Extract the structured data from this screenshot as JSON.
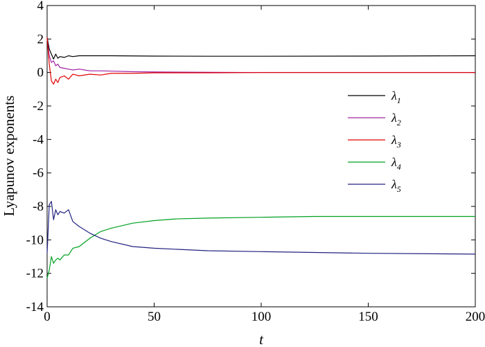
{
  "chart_data": {
    "type": "line",
    "title": "",
    "xlabel": "t",
    "ylabel": "Lyapunov exponents",
    "xlim": [
      0,
      200
    ],
    "ylim": [
      -14,
      4
    ],
    "xticks": [
      0,
      50,
      100,
      150,
      200
    ],
    "yticks": [
      4,
      2,
      0,
      -2,
      -4,
      -6,
      -8,
      -10,
      -12,
      -14
    ],
    "grid": false,
    "legend_position": "right",
    "series": [
      {
        "name": "λ1",
        "base": "λ",
        "sub": "1",
        "color": "#000000",
        "x": [
          0,
          1,
          2,
          3,
          4,
          5,
          6,
          8,
          10,
          12,
          15,
          20,
          30,
          50,
          75,
          100,
          150,
          200
        ],
        "y": [
          2.1,
          1.4,
          1.1,
          0.8,
          1.1,
          0.85,
          0.95,
          0.9,
          1.0,
          0.95,
          1.0,
          1.0,
          1.0,
          0.98,
          0.97,
          0.97,
          0.98,
          1.0
        ]
      },
      {
        "name": "λ2",
        "base": "λ",
        "sub": "2",
        "color": "#a020a0",
        "x": [
          0,
          1,
          2,
          3,
          4,
          5,
          6,
          8,
          10,
          12,
          15,
          20,
          25,
          30,
          40,
          50,
          75,
          100,
          150,
          200
        ],
        "y": [
          2.0,
          1.0,
          0.6,
          0.7,
          0.4,
          0.5,
          0.3,
          0.25,
          0.2,
          0.15,
          0.2,
          0.1,
          0.1,
          0.08,
          0.05,
          0.03,
          0.01,
          0.0,
          0.0,
          0.0
        ]
      },
      {
        "name": "λ3",
        "base": "λ",
        "sub": "3",
        "color": "#e00000",
        "x": [
          0,
          1,
          2,
          3,
          4,
          5,
          6,
          8,
          10,
          12,
          15,
          20,
          25,
          30,
          40,
          50,
          75,
          100,
          150,
          200
        ],
        "y": [
          2.1,
          0.5,
          -0.5,
          -0.7,
          -0.4,
          -0.6,
          -0.3,
          -0.2,
          -0.4,
          -0.1,
          -0.2,
          -0.1,
          -0.15,
          -0.05,
          -0.05,
          -0.02,
          -0.02,
          0.0,
          0.0,
          0.0
        ]
      },
      {
        "name": "λ4",
        "base": "λ",
        "sub": "4",
        "color": "#00a020",
        "x": [
          0,
          1,
          2,
          3,
          4,
          5,
          6,
          8,
          10,
          12,
          15,
          20,
          25,
          30,
          40,
          50,
          60,
          75,
          100,
          125,
          150,
          200
        ],
        "y": [
          -12.3,
          -11.8,
          -11.0,
          -11.4,
          -11.2,
          -11.1,
          -11.2,
          -10.9,
          -10.9,
          -10.5,
          -10.4,
          -9.9,
          -9.5,
          -9.3,
          -9.0,
          -8.85,
          -8.75,
          -8.7,
          -8.65,
          -8.6,
          -8.6,
          -8.6
        ]
      },
      {
        "name": "λ5",
        "base": "λ",
        "sub": "5",
        "color": "#202080",
        "x": [
          0,
          1,
          2,
          3,
          4,
          5,
          6,
          8,
          10,
          12,
          15,
          20,
          25,
          30,
          40,
          50,
          75,
          100,
          150,
          200
        ],
        "y": [
          -10.8,
          -7.9,
          -7.7,
          -8.8,
          -8.2,
          -8.5,
          -8.3,
          -8.4,
          -8.2,
          -8.9,
          -9.2,
          -9.6,
          -9.9,
          -10.1,
          -10.4,
          -10.5,
          -10.65,
          -10.7,
          -10.8,
          -10.85
        ]
      }
    ]
  }
}
